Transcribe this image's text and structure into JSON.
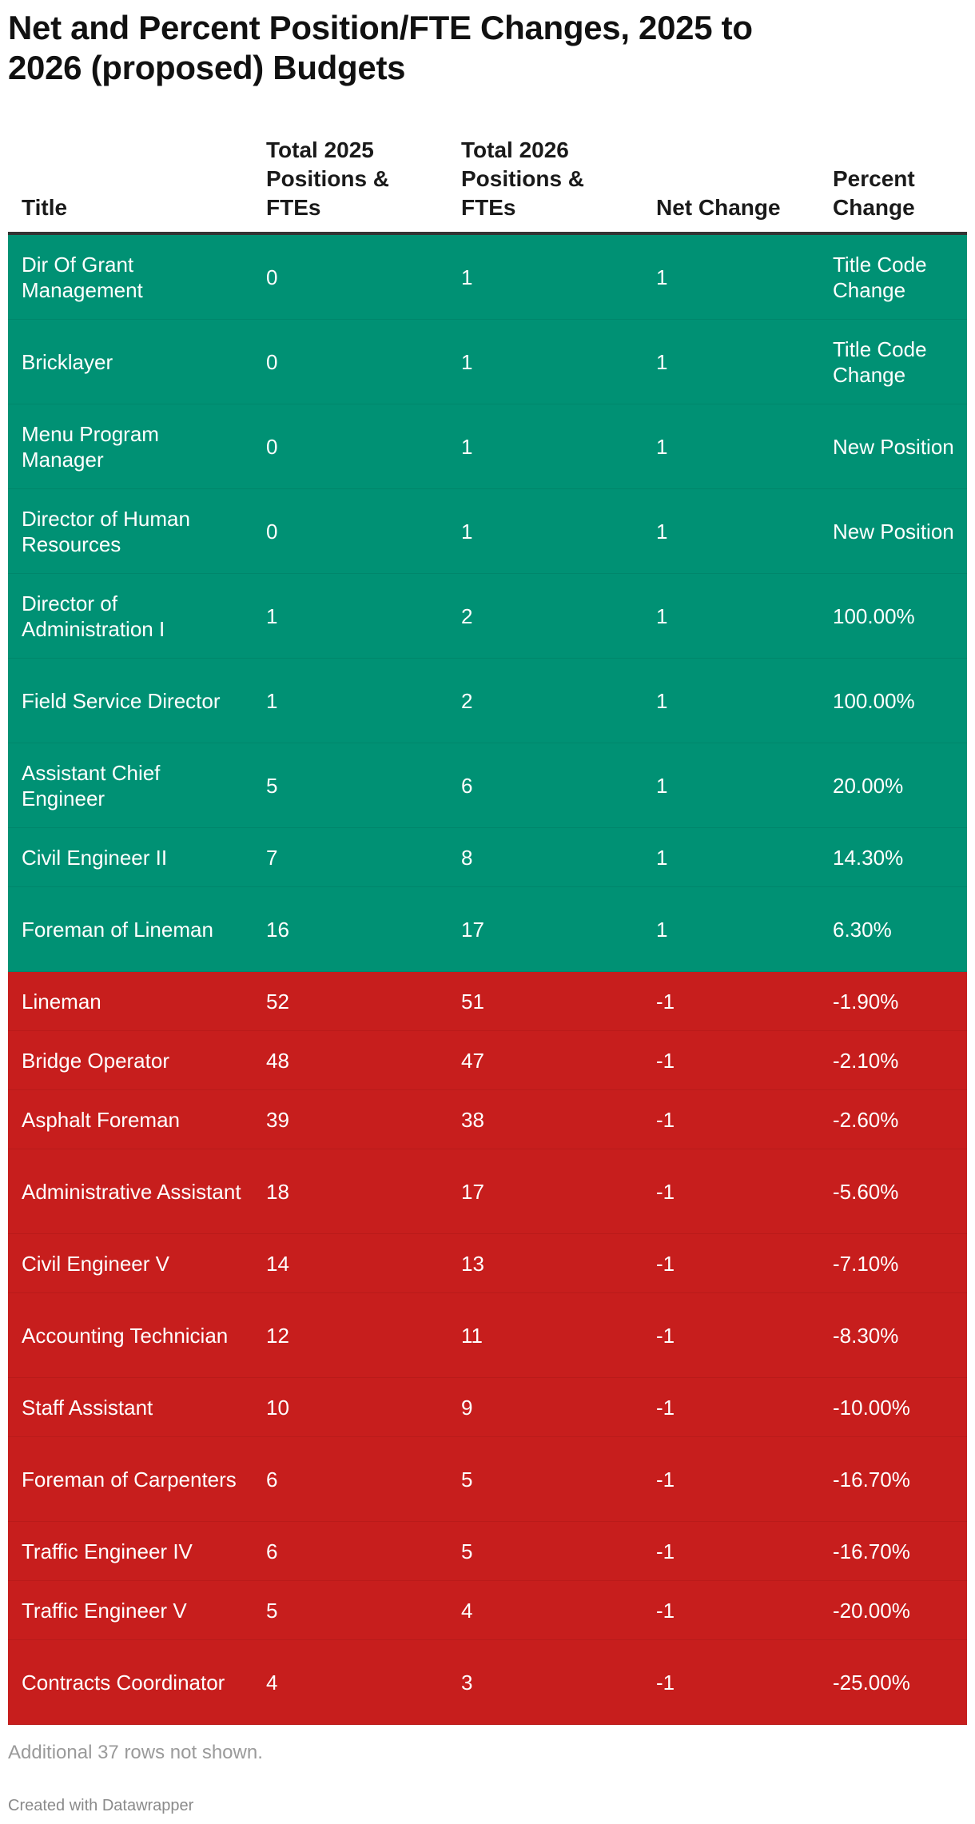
{
  "title": "Net and Percent Position/FTE Changes, 2025 to 2026 (proposed) Budgets",
  "colors": {
    "increase": "#009174",
    "decrease": "#c71e1d",
    "header_rule": "#333333"
  },
  "table": {
    "headers": [
      "Title",
      "Total 2025 Positions & FTEs",
      "Total 2026 Positions & FTEs",
      "Net Change",
      "Percent Change"
    ],
    "rows": [
      {
        "title": "Dir Of Grant Management",
        "y2025": "0",
        "y2026": "1",
        "net": "1",
        "pct": "Title Code Change",
        "type": "increase",
        "lines": 2
      },
      {
        "title": "Bricklayer",
        "y2025": "0",
        "y2026": "1",
        "net": "1",
        "pct": "Title Code Change",
        "type": "increase",
        "lines": 2
      },
      {
        "title": "Menu Program Manager",
        "y2025": "0",
        "y2026": "1",
        "net": "1",
        "pct": "New Position",
        "type": "increase",
        "lines": 2
      },
      {
        "title": "Director of Human Resources",
        "y2025": "0",
        "y2026": "1",
        "net": "1",
        "pct": "New Position",
        "type": "increase",
        "lines": 2
      },
      {
        "title": "Director of Administration I",
        "y2025": "1",
        "y2026": "2",
        "net": "1",
        "pct": "100.00%",
        "type": "increase",
        "lines": 2
      },
      {
        "title": "Field Service Director",
        "y2025": "1",
        "y2026": "2",
        "net": "1",
        "pct": "100.00%",
        "type": "increase",
        "lines": 2
      },
      {
        "title": "Assistant Chief Engineer",
        "y2025": "5",
        "y2026": "6",
        "net": "1",
        "pct": "20.00%",
        "type": "increase",
        "lines": 2
      },
      {
        "title": "Civil Engineer II",
        "y2025": "7",
        "y2026": "8",
        "net": "1",
        "pct": "14.30%",
        "type": "increase",
        "lines": 1
      },
      {
        "title": "Foreman of Lineman",
        "y2025": "16",
        "y2026": "17",
        "net": "1",
        "pct": "6.30%",
        "type": "increase",
        "lines": 2
      },
      {
        "title": "Lineman",
        "y2025": "52",
        "y2026": "51",
        "net": "-1",
        "pct": "-1.90%",
        "type": "decrease",
        "lines": 1
      },
      {
        "title": "Bridge Operator",
        "y2025": "48",
        "y2026": "47",
        "net": "-1",
        "pct": "-2.10%",
        "type": "decrease",
        "lines": 1
      },
      {
        "title": "Asphalt Foreman",
        "y2025": "39",
        "y2026": "38",
        "net": "-1",
        "pct": "-2.60%",
        "type": "decrease",
        "lines": 1
      },
      {
        "title": "Administrative Assistant",
        "y2025": "18",
        "y2026": "17",
        "net": "-1",
        "pct": "-5.60%",
        "type": "decrease",
        "lines": 2
      },
      {
        "title": "Civil Engineer V",
        "y2025": "14",
        "y2026": "13",
        "net": "-1",
        "pct": "-7.10%",
        "type": "decrease",
        "lines": 1
      },
      {
        "title": "Accounting Technician",
        "y2025": "12",
        "y2026": "11",
        "net": "-1",
        "pct": "-8.30%",
        "type": "decrease",
        "lines": 2
      },
      {
        "title": "Staff Assistant",
        "y2025": "10",
        "y2026": "9",
        "net": "-1",
        "pct": "-10.00%",
        "type": "decrease",
        "lines": 1
      },
      {
        "title": "Foreman of Carpenters",
        "y2025": "6",
        "y2026": "5",
        "net": "-1",
        "pct": "-16.70%",
        "type": "decrease",
        "lines": 2
      },
      {
        "title": "Traffic Engineer IV",
        "y2025": "6",
        "y2026": "5",
        "net": "-1",
        "pct": "-16.70%",
        "type": "decrease",
        "lines": 1
      },
      {
        "title": "Traffic Engineer V",
        "y2025": "5",
        "y2026": "4",
        "net": "-1",
        "pct": "-20.00%",
        "type": "decrease",
        "lines": 1
      },
      {
        "title": "Contracts Coordinator",
        "y2025": "4",
        "y2026": "3",
        "net": "-1",
        "pct": "-25.00%",
        "type": "decrease",
        "lines": 2
      }
    ]
  },
  "footer": {
    "note": "Additional 37 rows not shown.",
    "credit": "Created with Datawrapper"
  },
  "chart_data": {
    "type": "table",
    "title": "Net and Percent Position/FTE Changes, 2025 to 2026 (proposed) Budgets",
    "columns": [
      "Title",
      "Total 2025 Positions & FTEs",
      "Total 2026 Positions & FTEs",
      "Net Change",
      "Percent Change"
    ],
    "rows": [
      [
        "Dir Of Grant Management",
        0,
        1,
        1,
        "Title Code Change"
      ],
      [
        "Bricklayer",
        0,
        1,
        1,
        "Title Code Change"
      ],
      [
        "Menu Program Manager",
        0,
        1,
        1,
        "New Position"
      ],
      [
        "Director of Human Resources",
        0,
        1,
        1,
        "New Position"
      ],
      [
        "Director of Administration I",
        1,
        2,
        1,
        "100.00%"
      ],
      [
        "Field Service Director",
        1,
        2,
        1,
        "100.00%"
      ],
      [
        "Assistant Chief Engineer",
        5,
        6,
        1,
        "20.00%"
      ],
      [
        "Civil Engineer II",
        7,
        8,
        1,
        "14.30%"
      ],
      [
        "Foreman of Lineman",
        16,
        17,
        1,
        "6.30%"
      ],
      [
        "Lineman",
        52,
        51,
        -1,
        "-1.90%"
      ],
      [
        "Bridge Operator",
        48,
        47,
        -1,
        "-2.10%"
      ],
      [
        "Asphalt Foreman",
        39,
        38,
        -1,
        "-2.60%"
      ],
      [
        "Administrative Assistant",
        18,
        17,
        -1,
        "-5.60%"
      ],
      [
        "Civil Engineer V",
        14,
        13,
        -1,
        "-7.10%"
      ],
      [
        "Accounting Technician",
        12,
        11,
        -1,
        "-8.30%"
      ],
      [
        "Staff Assistant",
        10,
        9,
        -1,
        "-10.00%"
      ],
      [
        "Foreman of Carpenters",
        6,
        5,
        -1,
        "-16.70%"
      ],
      [
        "Traffic Engineer IV",
        6,
        5,
        -1,
        "-16.70%"
      ],
      [
        "Traffic Engineer V",
        5,
        4,
        -1,
        "-20.00%"
      ],
      [
        "Contracts Coordinator",
        4,
        3,
        -1,
        "-25.00%"
      ]
    ],
    "row_colors": {
      "increase": "#009174",
      "decrease": "#c71e1d"
    },
    "note": "Additional 37 rows not shown.",
    "credit": "Created with Datawrapper"
  }
}
